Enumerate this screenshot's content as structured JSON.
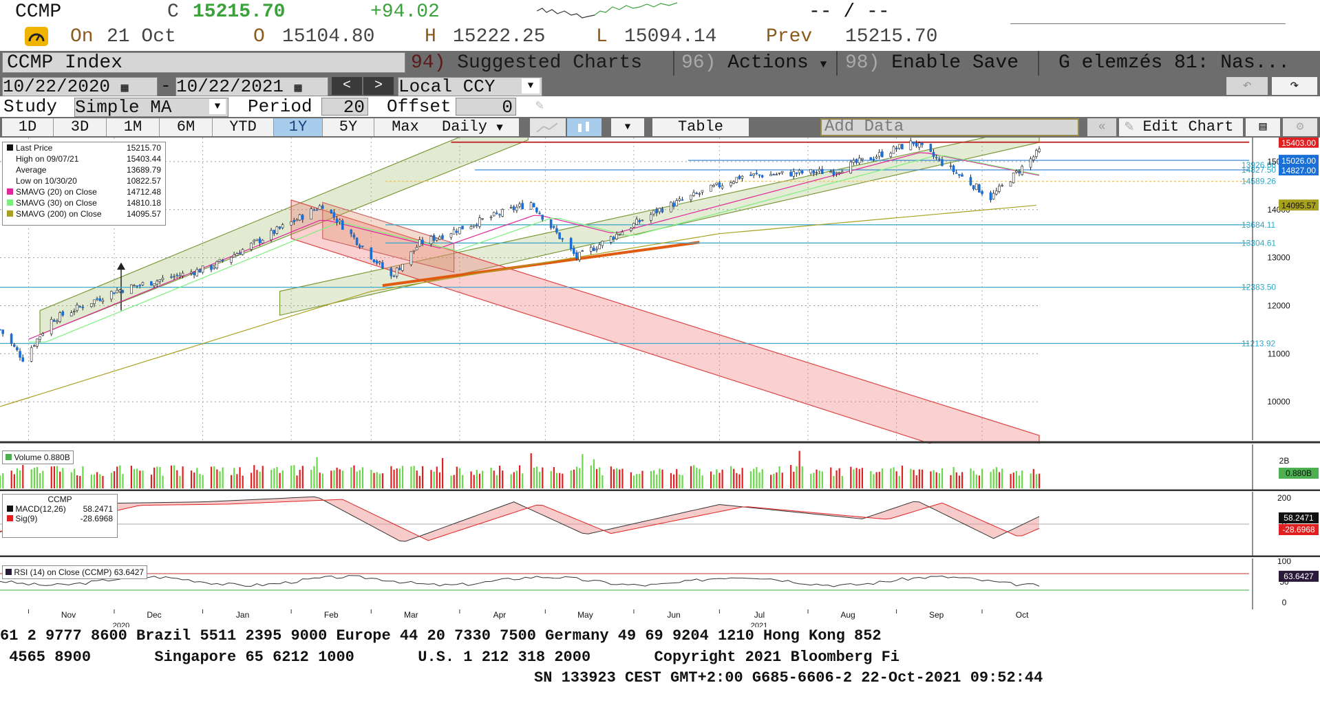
{
  "header": {
    "ticker": "CCMP",
    "close_label": "C",
    "close_value": "15215.70",
    "change": "+94.02",
    "bid_ask": "-- / --",
    "on_label": "On",
    "date": "21 Oct",
    "open_label": "O",
    "open_value": "15104.80",
    "high_label": "H",
    "high_value": "15222.25",
    "low_label": "L",
    "low_value": "15094.14",
    "prev_label": "Prev",
    "prev_value": "15215.70"
  },
  "toolbar": {
    "security": "CCMP Index",
    "suggested_num": "94)",
    "suggested_label": "Suggested Charts",
    "actions_num": "96)",
    "actions_label": "Actions",
    "enable_num": "98)",
    "enable_label": "Enable Save",
    "chart_name": "G elemzés 81: Nas..."
  },
  "range": {
    "start": "10/22/2020",
    "end": "10/22/2021",
    "currency": "Local CCY"
  },
  "study": {
    "label": "Study",
    "type": "Simple MA",
    "period_label": "Period",
    "period": "20",
    "offset_label": "Offset",
    "offset": "0"
  },
  "timeframes": [
    "1D",
    "3D",
    "1M",
    "6M",
    "YTD",
    "1Y",
    "5Y",
    "Max"
  ],
  "selected_timeframe": "1Y",
  "periodicity": "Daily",
  "table_label": "Table",
  "add_data_label": "Add Data",
  "edit_chart_label": "Edit Chart",
  "legend": [
    {
      "label": "Last Price",
      "value": "15215.70",
      "color": "#111111"
    },
    {
      "label": "High on 09/07/21",
      "value": "15403.44",
      "color": "#111111"
    },
    {
      "label": "Average",
      "value": "13689.79",
      "color": "#111111"
    },
    {
      "label": "Low on 10/30/20",
      "value": "10822.57",
      "color": "#111111"
    },
    {
      "label": "SMAVG (20)  on Close",
      "value": "14712.48",
      "color": "#e0269a"
    },
    {
      "label": "SMAVG (30)  on Close",
      "value": "14810.18",
      "color": "#7cf07c"
    },
    {
      "label": "SMAVG (200)  on Close",
      "value": "14095.57",
      "color": "#a8a020"
    }
  ],
  "price_tags": [
    {
      "value": "15403.00",
      "bg": "#e02020",
      "fg": "#ffffff"
    },
    {
      "value": "15026.00",
      "bg": "#1a6fd6",
      "fg": "#ffffff"
    },
    {
      "value": "14827.00",
      "bg": "#1a6fd6",
      "fg": "#ffffff"
    },
    {
      "value": "14095.57",
      "bg": "#a8a020",
      "fg": "#111111"
    }
  ],
  "level_labels": [
    "13926.66",
    "14827.50",
    "14589.26",
    "13684.11",
    "13304.61",
    "12383.50",
    "11213.92"
  ],
  "volume_label": "Volume 0.880B",
  "volume_axis": [
    "2B"
  ],
  "volume_tag": "0.880B",
  "macd_title": "CCMP",
  "macd_legend": [
    {
      "label": "MACD(12,26)",
      "value": "58.2471"
    },
    {
      "label": "Sig(9)",
      "value": "-28.6968"
    }
  ],
  "macd_axis": [
    "200",
    "0"
  ],
  "macd_tags": [
    "58.2471",
    "-28.6968"
  ],
  "rsi_label": "RSI (14)  on Close (CCMP) 63.6427",
  "rsi_axis": [
    "100",
    "50",
    "0"
  ],
  "rsi_tag": "63.6427",
  "year_labels": [
    "2020",
    "2021"
  ],
  "ticker_lines": [
    "61 2 9777 8600 Brazil 5511 2395 9000 Europe 44 20 7330 7500 Germany 49 69 9204 1210 Hong Kong 852",
    " 4565 8900       Singapore 65 6212 1000       U.S. 1 212 318 2000       Copyright 2021 Bloomberg Fi",
    "SN 133923 CEST GMT+2:00 G685-6606-2 22-Oct-2021 09:52:44"
  ],
  "chart_data": {
    "type": "candlestick",
    "title": "CCMP Index",
    "x_ticks": [
      "Nov",
      "Dec",
      "Jan",
      "Feb",
      "Mar",
      "Apr",
      "May",
      "Jun",
      "Jul",
      "Aug",
      "Sep",
      "Oct"
    ],
    "y_ticks": [
      10000,
      11000,
      12000,
      13000,
      14000,
      15000
    ],
    "ylim": [
      9200,
      15500
    ],
    "series": [
      {
        "name": "Last Price",
        "keypoints": [
          {
            "date": "2020-10-22",
            "value": 11500
          },
          {
            "date": "2020-10-30",
            "value": 10900
          },
          {
            "date": "2020-11-09",
            "value": 11700
          },
          {
            "date": "2020-12-01",
            "value": 12300
          },
          {
            "date": "2021-01-04",
            "value": 12800
          },
          {
            "date": "2021-02-12",
            "value": 14100
          },
          {
            "date": "2021-03-08",
            "value": 12600
          },
          {
            "date": "2021-03-18",
            "value": 13300
          },
          {
            "date": "2021-04-26",
            "value": 14150
          },
          {
            "date": "2021-05-12",
            "value": 13000
          },
          {
            "date": "2021-06-10",
            "value": 14000
          },
          {
            "date": "2021-07-09",
            "value": 14700
          },
          {
            "date": "2021-08-10",
            "value": 14800
          },
          {
            "date": "2021-09-07",
            "value": 15400
          },
          {
            "date": "2021-10-04",
            "value": 14250
          },
          {
            "date": "2021-10-21",
            "value": 15215.7
          }
        ]
      },
      {
        "name": "SMAVG (20)  on Close",
        "keypoints": [
          {
            "date": "2020-11-01",
            "value": 11300
          },
          {
            "date": "2021-02-12",
            "value": 13800
          },
          {
            "date": "2021-03-25",
            "value": 13200
          },
          {
            "date": "2021-04-28",
            "value": 13900
          },
          {
            "date": "2021-05-25",
            "value": 13500
          },
          {
            "date": "2021-09-10",
            "value": 15200
          },
          {
            "date": "2021-10-21",
            "value": 14712.48
          }
        ]
      },
      {
        "name": "SMAVG (200)  on Close",
        "keypoints": [
          {
            "date": "2020-10-22",
            "value": 9900
          },
          {
            "date": "2021-03-01",
            "value": 12300
          },
          {
            "date": "2021-07-01",
            "value": 13500
          },
          {
            "date": "2021-10-21",
            "value": 14095.57
          }
        ]
      }
    ],
    "horizontal_levels": [
      15403,
      15026,
      14827,
      14589.26,
      13684.11,
      13304.61,
      12383.5,
      11213.92
    ]
  }
}
